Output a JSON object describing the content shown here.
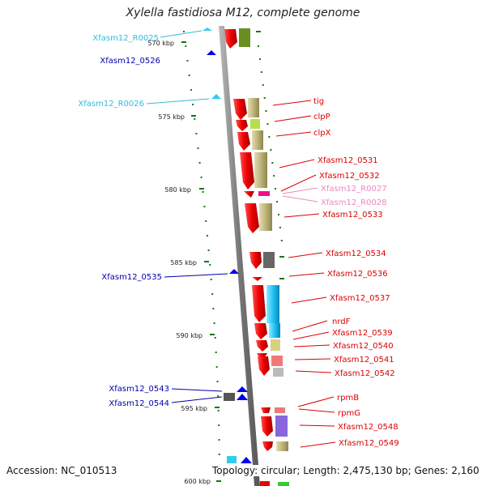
{
  "title": "Xylella fastidiosa M12, complete genome",
  "accession": "Accession: NC_010513",
  "summary": "Topology: circular; Length: 2,475,130 bp; Genes: 2,160",
  "kbp_labels": [
    "570 kbp",
    "575 kbp",
    "580 kbp",
    "585 kbp",
    "590 kbp",
    "595 kbp",
    "600 kbp"
  ],
  "left_labels": [
    {
      "text": "Xfasm12_R0025",
      "color": "#33bbdd"
    },
    {
      "text": "Xfasm12_0526",
      "color": "#0000aa"
    },
    {
      "text": "Xfasm12_R0026",
      "color": "#33bbdd"
    },
    {
      "text": "Xfasm12_0535",
      "color": "#0000aa"
    },
    {
      "text": "Xfasm12_0543",
      "color": "#0000aa"
    },
    {
      "text": "Xfasm12_0544",
      "color": "#0000aa"
    }
  ],
  "right_labels": [
    {
      "text": "tig",
      "color": "#dd0000"
    },
    {
      "text": "clpP",
      "color": "#dd0000"
    },
    {
      "text": "clpX",
      "color": "#dd0000"
    },
    {
      "text": "Xfasm12_0531",
      "color": "#dd0000"
    },
    {
      "text": "Xfasm12_0532",
      "color": "#dd0000"
    },
    {
      "text": "Xfasm12_R0027",
      "color": "#ee88bb"
    },
    {
      "text": "Xfasm12_R0028",
      "color": "#ee88bb"
    },
    {
      "text": "Xfasm12_0533",
      "color": "#dd0000"
    },
    {
      "text": "Xfasm12_0534",
      "color": "#dd0000"
    },
    {
      "text": "Xfasm12_0536",
      "color": "#dd0000"
    },
    {
      "text": "Xfasm12_0537",
      "color": "#dd0000"
    },
    {
      "text": "nrdF",
      "color": "#dd0000"
    },
    {
      "text": "Xfasm12_0539",
      "color": "#dd0000"
    },
    {
      "text": "Xfasm12_0540",
      "color": "#dd0000"
    },
    {
      "text": "Xfasm12_0541",
      "color": "#dd0000"
    },
    {
      "text": "Xfasm12_0542",
      "color": "#dd0000"
    },
    {
      "text": "rpmB",
      "color": "#dd0000"
    },
    {
      "text": "rpmG",
      "color": "#dd0000"
    },
    {
      "text": "Xfasm12_0548",
      "color": "#dd0000"
    },
    {
      "text": "Xfasm12_0549",
      "color": "#dd0000"
    }
  ],
  "colors": {
    "forward_gene": "#ee0000",
    "reverse_gene": "#0000ee",
    "rna_gene": "#33ccee",
    "backbone": "#888888",
    "tick": "#117711"
  }
}
